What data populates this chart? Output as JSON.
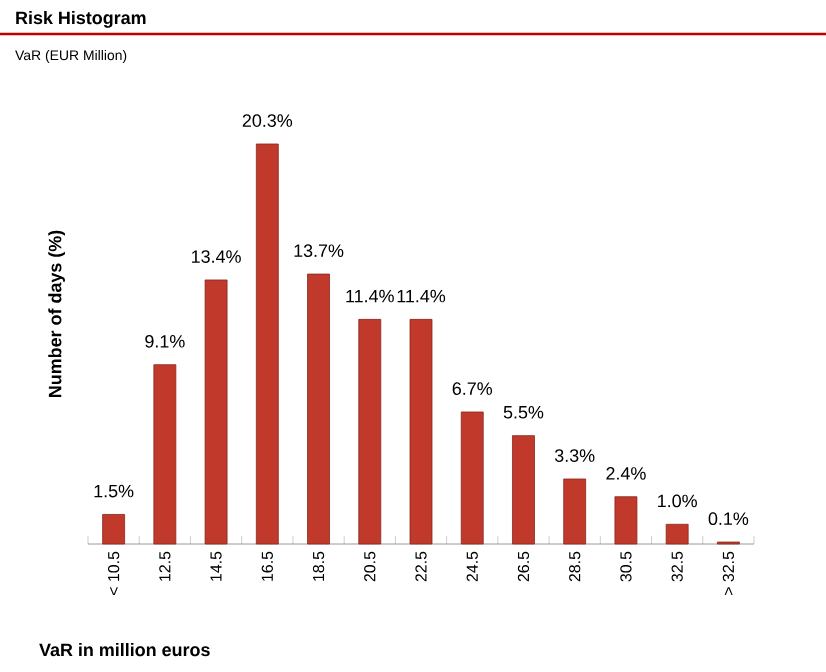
{
  "chart_data": {
    "type": "bar",
    "title": "Risk Histogram",
    "subtitle": "VaR (EUR Million)",
    "xlabel": "VaR in million  euros",
    "ylabel": "Number  of days (%)",
    "categories": [
      "< 10.5",
      "12.5",
      "14.5",
      "16.5",
      "18.5",
      "20.5",
      "22.5",
      "24.5",
      "26.5",
      "28.5",
      "30.5",
      "32.5",
      "> 32.5"
    ],
    "values": [
      1.5,
      9.1,
      13.4,
      20.3,
      13.7,
      11.4,
      11.4,
      6.7,
      5.5,
      3.3,
      2.4,
      1.0,
      0.1
    ],
    "value_labels": [
      "1.5%",
      "9.1%",
      "13.4%",
      "20.3%",
      "13.7%",
      "11.4%",
      "11.4%",
      "6.7%",
      "5.5%",
      "3.3%",
      "2.4%",
      "1.0%",
      "0.1%"
    ],
    "color": "#c0392b"
  }
}
